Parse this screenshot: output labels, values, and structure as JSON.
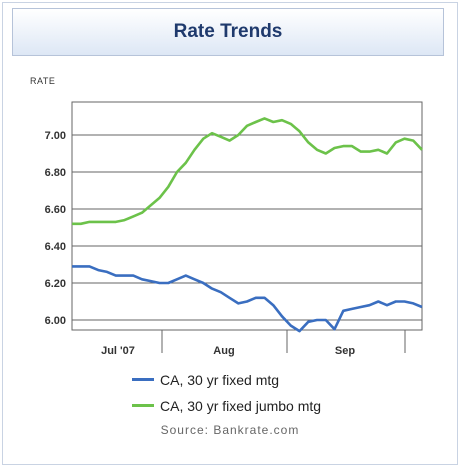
{
  "header": {
    "title": "Rate Trends"
  },
  "source": "Source: Bankrate.com",
  "colors": {
    "jumbo": "#6cc24a",
    "fixed": "#3a6ec0",
    "grid": "#666666",
    "header_text": "#1f3a6d"
  },
  "chart_data": {
    "type": "line",
    "ylabel": "RATE",
    "ylim": [
      5.95,
      7.1
    ],
    "yticks": [
      "7.00",
      "6.80",
      "6.60",
      "6.40",
      "6.20",
      "6.00"
    ],
    "xticks": [
      "Jul '07",
      "Aug",
      "Sep"
    ],
    "grid": true,
    "legend_position": "bottom",
    "x_unit": "day index (0 = start of series)",
    "series": [
      {
        "name": "CA, 30 yr fixed mtg",
        "color": "#3a6ec0",
        "x": [
          0,
          2,
          4,
          6,
          8,
          10,
          12,
          14,
          16,
          18,
          20,
          22,
          24,
          26,
          28,
          30,
          32,
          34,
          36,
          38,
          40,
          42,
          44,
          46,
          48,
          50,
          52,
          54,
          56,
          58,
          60,
          62,
          64,
          66,
          68,
          70,
          72,
          74,
          76,
          78,
          80
        ],
        "values": [
          6.29,
          6.29,
          6.29,
          6.27,
          6.26,
          6.24,
          6.24,
          6.24,
          6.22,
          6.21,
          6.2,
          6.2,
          6.22,
          6.24,
          6.22,
          6.2,
          6.17,
          6.15,
          6.12,
          6.09,
          6.1,
          6.12,
          6.12,
          6.08,
          6.02,
          5.97,
          5.94,
          5.99,
          6.0,
          6.0,
          5.95,
          6.05,
          6.06,
          6.07,
          6.08,
          6.1,
          6.08,
          6.1,
          6.1,
          6.09,
          6.07
        ]
      },
      {
        "name": "CA, 30 yr fixed jumbo mtg",
        "color": "#6cc24a",
        "x": [
          0,
          2,
          4,
          6,
          8,
          10,
          12,
          14,
          16,
          18,
          20,
          22,
          24,
          26,
          28,
          30,
          32,
          34,
          36,
          38,
          40,
          42,
          44,
          46,
          48,
          50,
          52,
          54,
          56,
          58,
          60,
          62,
          64,
          66,
          68,
          70,
          72,
          74,
          76,
          78,
          80
        ],
        "values": [
          6.52,
          6.52,
          6.53,
          6.53,
          6.53,
          6.53,
          6.54,
          6.56,
          6.58,
          6.62,
          6.66,
          6.72,
          6.8,
          6.85,
          6.92,
          6.98,
          7.01,
          6.99,
          6.97,
          7.0,
          7.05,
          7.07,
          7.09,
          7.07,
          7.08,
          7.06,
          7.02,
          6.96,
          6.92,
          6.9,
          6.93,
          6.94,
          6.94,
          6.91,
          6.91,
          6.92,
          6.9,
          6.96,
          6.98,
          6.97,
          6.92
        ]
      }
    ]
  }
}
